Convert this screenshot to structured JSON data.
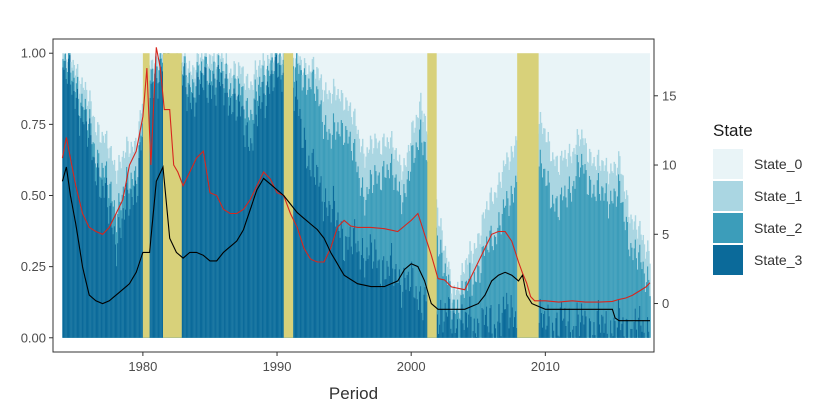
{
  "chart_data": {
    "type": "bar",
    "title": "",
    "xlabel": "Period",
    "ylabel": "",
    "y2label": "",
    "xlim": [
      1973.3,
      2018.1
    ],
    "ylim": [
      -0.05,
      1.05
    ],
    "y2lim": [
      -3.5,
      19.1
    ],
    "x_ticks": [
      1980,
      1990,
      2000,
      2010
    ],
    "y_ticks": [
      "0.00",
      "0.25",
      "0.50",
      "0.75",
      "1.00"
    ],
    "y2_ticks": [
      "0",
      "5",
      "10",
      "15"
    ],
    "grid": false,
    "legend": {
      "title": "State",
      "position": "right"
    },
    "x_range": [
      1974.0,
      2017.8
    ],
    "states": [
      {
        "name": "State_0",
        "color": "#e9f4f7"
      },
      {
        "name": "State_1",
        "color": "#aad6e2"
      },
      {
        "name": "State_2",
        "color": "#3c9dba"
      },
      {
        "name": "State_3",
        "color": "#0b6a9a"
      }
    ],
    "state_probability_knots": {
      "x": [
        1974.0,
        1975.0,
        1976.5,
        1978.0,
        1979.5,
        1980.5,
        1982.0,
        1983.5,
        1985.0,
        1986.5,
        1988.0,
        1989.5,
        1991.0,
        1992.5,
        1994.0,
        1995.0,
        1996.5,
        1998.0,
        1999.5,
        2000.7,
        2001.8,
        2003.0,
        2004.5,
        2006.0,
        2007.5,
        2008.5,
        2009.5,
        2011.0,
        2012.5,
        2014.0,
        2015.5,
        2016.5,
        2017.8
      ],
      "state_3_upper": [
        0.95,
        0.85,
        0.6,
        0.35,
        0.55,
        0.9,
        0.95,
        0.85,
        0.9,
        0.85,
        0.7,
        0.92,
        0.9,
        0.6,
        0.45,
        0.35,
        0.3,
        0.25,
        0.2,
        0.15,
        0.1,
        0.06,
        0.05,
        0.05,
        0.1,
        0.1,
        0.05,
        0.05,
        0.05,
        0.04,
        0.04,
        0.03,
        0.03
      ],
      "state_2_upper": [
        0.98,
        0.9,
        0.65,
        0.45,
        0.6,
        0.95,
        0.97,
        0.9,
        0.95,
        0.9,
        0.8,
        0.97,
        0.95,
        0.9,
        0.7,
        0.75,
        0.5,
        0.6,
        0.5,
        0.75,
        0.4,
        0.1,
        0.2,
        0.35,
        0.5,
        0.8,
        0.6,
        0.45,
        0.6,
        0.5,
        0.5,
        0.3,
        0.2
      ],
      "state_1_upper": [
        1.0,
        0.95,
        0.75,
        0.6,
        0.7,
        0.98,
        1.0,
        0.95,
        1.0,
        0.95,
        0.9,
        1.0,
        0.98,
        0.95,
        0.85,
        0.85,
        0.65,
        0.7,
        0.6,
        0.85,
        0.5,
        0.15,
        0.3,
        0.5,
        0.65,
        0.9,
        0.75,
        0.6,
        0.7,
        0.6,
        0.6,
        0.4,
        0.3
      ]
    },
    "recessions": [
      [
        1980.0,
        1980.5
      ],
      [
        1981.5,
        1982.9
      ],
      [
        1990.5,
        1991.2
      ],
      [
        2001.2,
        2001.9
      ],
      [
        2007.9,
        2009.5
      ]
    ],
    "recession_color": "#d8d17a",
    "series": [
      {
        "name": "",
        "axis": "right",
        "color": "#d7261e",
        "x": [
          1974.0,
          1974.3,
          1974.6,
          1975.0,
          1975.5,
          1976.0,
          1976.5,
          1977.0,
          1977.5,
          1978.0,
          1978.5,
          1979.0,
          1979.5,
          1980.0,
          1980.3,
          1980.6,
          1981.0,
          1981.3,
          1981.6,
          1982.0,
          1982.3,
          1982.6,
          1983.0,
          1983.5,
          1984.0,
          1984.5,
          1985.0,
          1985.5,
          1986.0,
          1986.5,
          1987.0,
          1987.5,
          1988.0,
          1988.5,
          1989.0,
          1989.5,
          1990.0,
          1990.5,
          1991.0,
          1991.5,
          1992.0,
          1992.5,
          1993.0,
          1993.5,
          1994.0,
          1994.5,
          1995.0,
          1995.5,
          1996.0,
          1997.0,
          1998.0,
          1999.0,
          2000.0,
          2000.5,
          2001.0,
          2001.5,
          2002.0,
          2002.5,
          2003.0,
          2004.0,
          2004.5,
          2005.0,
          2005.5,
          2006.0,
          2006.5,
          2007.0,
          2007.5,
          2008.0,
          2008.3,
          2008.6,
          2008.9,
          2009.2,
          2010.0,
          2011.0,
          2012.0,
          2013.0,
          2014.0,
          2015.0,
          2015.5,
          2016.0,
          2016.5,
          2017.0,
          2017.5,
          2017.8
        ],
        "values": [
          10.5,
          12.0,
          10.5,
          8.5,
          6.5,
          5.5,
          5.2,
          5.0,
          5.5,
          6.5,
          7.5,
          10.0,
          11.0,
          13.5,
          17.0,
          10.0,
          18.5,
          17.0,
          14.0,
          14.0,
          10.0,
          9.5,
          8.5,
          9.5,
          10.5,
          11.0,
          8.0,
          7.8,
          6.8,
          6.5,
          6.5,
          6.8,
          7.5,
          8.5,
          9.5,
          9.0,
          8.0,
          7.8,
          6.5,
          5.5,
          4.0,
          3.2,
          3.0,
          3.0,
          4.0,
          5.5,
          6.0,
          5.6,
          5.5,
          5.5,
          5.4,
          5.2,
          6.0,
          6.5,
          5.0,
          3.5,
          1.8,
          1.7,
          1.2,
          1.0,
          2.0,
          3.0,
          4.0,
          5.0,
          5.2,
          5.2,
          4.5,
          3.0,
          2.2,
          1.5,
          0.5,
          0.2,
          0.2,
          0.1,
          0.2,
          0.1,
          0.1,
          0.15,
          0.3,
          0.4,
          0.6,
          0.9,
          1.2,
          1.5
        ]
      },
      {
        "name": "",
        "axis": "left",
        "color": "#000000",
        "x": [
          1974.0,
          1974.3,
          1974.6,
          1975.0,
          1975.5,
          1976.0,
          1976.5,
          1977.0,
          1977.5,
          1978.0,
          1978.5,
          1979.0,
          1979.5,
          1980.0,
          1980.5,
          1981.0,
          1981.5,
          1982.0,
          1982.5,
          1983.0,
          1983.5,
          1984.0,
          1984.5,
          1985.0,
          1985.5,
          1986.0,
          1986.5,
          1987.0,
          1987.5,
          1988.0,
          1988.5,
          1989.0,
          1989.5,
          1990.0,
          1990.5,
          1991.0,
          1991.5,
          1992.0,
          1992.5,
          1993.0,
          1993.5,
          1994.0,
          1995.0,
          1996.0,
          1997.0,
          1998.0,
          1999.0,
          1999.5,
          2000.0,
          2000.5,
          2001.0,
          2001.5,
          2002.0,
          2002.5,
          2003.0,
          2004.0,
          2005.0,
          2005.5,
          2006.0,
          2006.5,
          2007.0,
          2007.5,
          2008.0,
          2008.3,
          2008.6,
          2009.0,
          2010.0,
          2011.0,
          2012.0,
          2013.0,
          2014.0,
          2015.0,
          2015.2,
          2015.5,
          2016.0,
          2017.0,
          2017.8
        ],
        "values": [
          0.55,
          0.6,
          0.5,
          0.4,
          0.25,
          0.15,
          0.13,
          0.12,
          0.13,
          0.15,
          0.17,
          0.19,
          0.23,
          0.3,
          0.3,
          0.55,
          0.6,
          0.35,
          0.3,
          0.28,
          0.3,
          0.3,
          0.29,
          0.27,
          0.27,
          0.3,
          0.32,
          0.34,
          0.38,
          0.45,
          0.52,
          0.56,
          0.54,
          0.52,
          0.5,
          0.47,
          0.44,
          0.42,
          0.4,
          0.38,
          0.35,
          0.3,
          0.22,
          0.19,
          0.18,
          0.18,
          0.2,
          0.24,
          0.26,
          0.25,
          0.2,
          0.12,
          0.1,
          0.1,
          0.1,
          0.1,
          0.12,
          0.15,
          0.2,
          0.22,
          0.23,
          0.22,
          0.2,
          0.22,
          0.15,
          0.12,
          0.1,
          0.1,
          0.1,
          0.1,
          0.1,
          0.1,
          0.07,
          0.06,
          0.06,
          0.06,
          0.06
        ]
      }
    ]
  }
}
